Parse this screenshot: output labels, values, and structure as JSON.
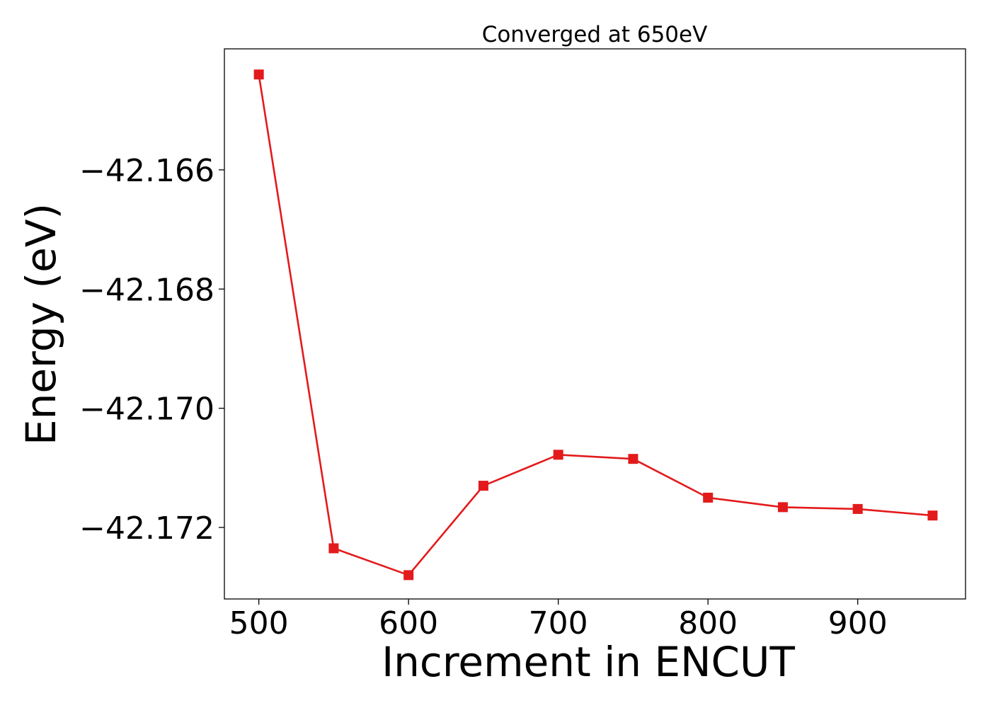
{
  "chart_data": {
    "type": "line",
    "title": "Converged at 650eV",
    "xlabel": "Increment in ENCUT",
    "ylabel": "Energy (eV)",
    "xlim": [
      477,
      972
    ],
    "ylim": [
      -42.1732,
      -42.16397
    ],
    "xticks": [
      500,
      600,
      700,
      800,
      900
    ],
    "yticks": [
      -42.166,
      -42.168,
      -42.17,
      -42.172
    ],
    "ytick_labels": [
      "−42.166",
      "−42.168",
      "−42.170",
      "−42.172"
    ],
    "grid": false,
    "legend": "none",
    "series": [
      {
        "color": "#e31a1c",
        "marker": "square",
        "x": [
          500,
          550,
          600,
          650,
          700,
          750,
          800,
          850,
          900,
          950
        ],
        "y": [
          -42.1644,
          -42.17235,
          -42.1728,
          -42.1713,
          -42.17078,
          -42.17085,
          -42.1715,
          -42.17166,
          -42.17169,
          -42.1718
        ]
      }
    ]
  }
}
